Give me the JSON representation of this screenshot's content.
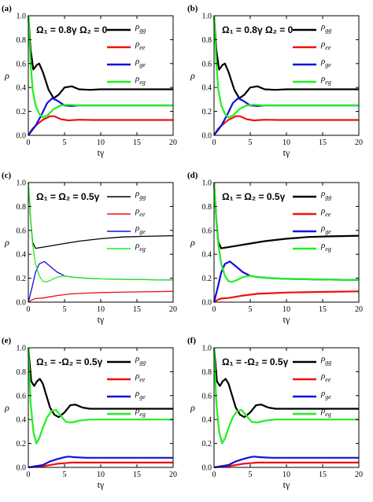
{
  "colors": {
    "gg": "#000000",
    "ee": "#ee1111",
    "ge": "#1111dd",
    "eg": "#22ee22"
  },
  "legend": {
    "labels": [
      {
        "key": "gg",
        "base": "ρ",
        "sub": "gg"
      },
      {
        "key": "ee",
        "base": "ρ",
        "sub": "ee"
      },
      {
        "key": "ge",
        "base": "ρ",
        "sub": "ge"
      },
      {
        "key": "eg",
        "base": "ρ",
        "sub": "eg"
      }
    ]
  },
  "axes": {
    "xlabel": "tγ",
    "ylabel": "ρ",
    "xticks": [
      "0",
      "5",
      "10",
      "15",
      "20"
    ],
    "yticks": [
      "0.0",
      "0.2",
      "0.4",
      "0.6",
      "0.8",
      "1.0"
    ]
  },
  "chart_data": [
    {
      "type": "line",
      "letter": "(a)",
      "annotation": "Ω₁ = 0.8γ  Ω₂ = 0",
      "xlim": [
        0,
        20
      ],
      "ylim": [
        0,
        1
      ],
      "linewidth": "thick",
      "series": [
        {
          "key": "gg",
          "name": "ρgg",
          "x": [
            0,
            0.3,
            0.7,
            1.2,
            1.5,
            2.0,
            2.8,
            3.5,
            4.2,
            5.0,
            6.0,
            7.0,
            8.5,
            10,
            15,
            20
          ],
          "y": [
            1.0,
            0.72,
            0.55,
            0.59,
            0.6,
            0.53,
            0.38,
            0.31,
            0.34,
            0.4,
            0.41,
            0.385,
            0.38,
            0.385,
            0.385,
            0.385
          ]
        },
        {
          "key": "ee",
          "name": "ρee",
          "x": [
            0,
            0.5,
            1,
            2,
            3,
            3.6,
            4.5,
            5.5,
            7,
            9,
            12,
            20
          ],
          "y": [
            0.0,
            0.05,
            0.08,
            0.13,
            0.16,
            0.16,
            0.135,
            0.125,
            0.13,
            0.128,
            0.128,
            0.128
          ]
        },
        {
          "key": "ge",
          "name": "ρge",
          "x": [
            0,
            0.5,
            1,
            1.8,
            2.6,
            3.3,
            4,
            5,
            6,
            7,
            9,
            12,
            20
          ],
          "y": [
            0.0,
            0.04,
            0.08,
            0.17,
            0.27,
            0.31,
            0.29,
            0.25,
            0.245,
            0.25,
            0.25,
            0.25,
            0.25
          ]
        },
        {
          "key": "eg",
          "name": "ρeg",
          "x": [
            0,
            0.3,
            0.6,
            1,
            1.5,
            2,
            2.7,
            3.5,
            4.5,
            5.5,
            7,
            9,
            12,
            20
          ],
          "y": [
            1.0,
            0.62,
            0.38,
            0.25,
            0.18,
            0.15,
            0.17,
            0.22,
            0.25,
            0.255,
            0.25,
            0.25,
            0.25,
            0.25
          ]
        }
      ]
    },
    {
      "type": "line",
      "letter": "(b)",
      "annotation": "Ω₁ = 0.8γ  Ω₂ = 0",
      "xlim": [
        0,
        20
      ],
      "ylim": [
        0,
        1
      ],
      "linewidth": "thick",
      "series": [
        {
          "key": "gg",
          "name": "ρgg",
          "x": [
            0,
            0.3,
            0.7,
            1.2,
            1.5,
            2.0,
            2.8,
            3.5,
            4.2,
            5.0,
            6.0,
            7.0,
            8.5,
            10,
            15,
            20
          ],
          "y": [
            1.0,
            0.72,
            0.55,
            0.59,
            0.6,
            0.53,
            0.38,
            0.31,
            0.34,
            0.4,
            0.41,
            0.385,
            0.38,
            0.385,
            0.385,
            0.385
          ]
        },
        {
          "key": "ee",
          "name": "ρee",
          "x": [
            0,
            0.5,
            1,
            2,
            3,
            3.6,
            4.5,
            5.5,
            7,
            9,
            12,
            20
          ],
          "y": [
            0.0,
            0.05,
            0.08,
            0.13,
            0.16,
            0.16,
            0.135,
            0.125,
            0.13,
            0.128,
            0.128,
            0.128
          ]
        },
        {
          "key": "ge",
          "name": "ρge",
          "x": [
            0,
            0.5,
            1,
            1.8,
            2.6,
            3.3,
            4,
            5,
            6,
            7,
            9,
            12,
            20
          ],
          "y": [
            0.0,
            0.04,
            0.08,
            0.17,
            0.27,
            0.31,
            0.29,
            0.25,
            0.245,
            0.25,
            0.25,
            0.25,
            0.25
          ]
        },
        {
          "key": "eg",
          "name": "ρeg",
          "x": [
            0,
            0.3,
            0.6,
            1,
            1.5,
            2,
            2.7,
            3.5,
            4.5,
            5.5,
            7,
            9,
            12,
            20
          ],
          "y": [
            1.0,
            0.62,
            0.38,
            0.25,
            0.18,
            0.15,
            0.17,
            0.22,
            0.25,
            0.255,
            0.25,
            0.25,
            0.25,
            0.25
          ]
        }
      ]
    },
    {
      "type": "line",
      "letter": "(c)",
      "annotation": "Ω₁ = Ω₂ = 0.5γ",
      "xlim": [
        0,
        20
      ],
      "ylim": [
        0,
        1
      ],
      "linewidth": "thin",
      "series": [
        {
          "key": "gg",
          "name": "ρgg",
          "x": [
            0,
            0.3,
            0.6,
            1,
            2,
            3,
            5,
            7,
            10,
            13,
            16,
            20
          ],
          "y": [
            1.0,
            0.7,
            0.5,
            0.45,
            0.46,
            0.47,
            0.49,
            0.51,
            0.53,
            0.545,
            0.55,
            0.555
          ]
        },
        {
          "key": "ee",
          "name": "ρee",
          "x": [
            0,
            0.5,
            1,
            2,
            3,
            4,
            6,
            8,
            10,
            14,
            20
          ],
          "y": [
            0.0,
            0.02,
            0.03,
            0.035,
            0.045,
            0.055,
            0.07,
            0.075,
            0.08,
            0.085,
            0.09
          ]
        },
        {
          "key": "ge",
          "name": "ρge",
          "x": [
            0,
            0.5,
            1,
            1.5,
            2.2,
            3,
            4,
            5,
            6,
            8,
            10,
            14,
            20
          ],
          "y": [
            0.0,
            0.12,
            0.25,
            0.32,
            0.34,
            0.3,
            0.25,
            0.22,
            0.21,
            0.2,
            0.195,
            0.19,
            0.185
          ]
        },
        {
          "key": "eg",
          "name": "ρeg",
          "x": [
            0,
            0.3,
            0.6,
            1,
            1.5,
            2,
            2.5,
            3,
            4,
            5,
            6,
            8,
            10,
            14,
            20
          ],
          "y": [
            1.0,
            0.7,
            0.48,
            0.32,
            0.22,
            0.175,
            0.17,
            0.18,
            0.21,
            0.22,
            0.21,
            0.2,
            0.195,
            0.19,
            0.185
          ]
        }
      ]
    },
    {
      "type": "line",
      "letter": "(d)",
      "annotation": "Ω₁ = Ω₂ = 0.5γ",
      "xlim": [
        0,
        20
      ],
      "ylim": [
        0,
        1
      ],
      "linewidth": "thick",
      "series": [
        {
          "key": "gg",
          "name": "ρgg",
          "x": [
            0,
            0.3,
            0.6,
            1,
            2,
            3,
            5,
            7,
            10,
            13,
            16,
            20
          ],
          "y": [
            1.0,
            0.7,
            0.5,
            0.45,
            0.46,
            0.47,
            0.49,
            0.51,
            0.53,
            0.545,
            0.55,
            0.555
          ]
        },
        {
          "key": "ee",
          "name": "ρee",
          "x": [
            0,
            0.5,
            1,
            2,
            3,
            4,
            6,
            8,
            10,
            14,
            20
          ],
          "y": [
            0.0,
            0.02,
            0.03,
            0.035,
            0.045,
            0.055,
            0.07,
            0.075,
            0.08,
            0.085,
            0.09
          ]
        },
        {
          "key": "ge",
          "name": "ρge",
          "x": [
            0,
            0.5,
            1,
            1.5,
            2.2,
            3,
            4,
            5,
            6,
            8,
            10,
            14,
            20
          ],
          "y": [
            0.0,
            0.12,
            0.25,
            0.32,
            0.34,
            0.3,
            0.25,
            0.22,
            0.21,
            0.2,
            0.195,
            0.19,
            0.185
          ]
        },
        {
          "key": "eg",
          "name": "ρeg",
          "x": [
            0,
            0.3,
            0.6,
            1,
            1.5,
            2,
            2.5,
            3,
            4,
            5,
            6,
            8,
            10,
            14,
            20
          ],
          "y": [
            1.0,
            0.7,
            0.48,
            0.32,
            0.22,
            0.175,
            0.17,
            0.18,
            0.21,
            0.22,
            0.21,
            0.2,
            0.195,
            0.19,
            0.185
          ]
        }
      ]
    },
    {
      "type": "line",
      "letter": "(e)",
      "annotation": "Ω₁ = -Ω₂ = 0.5γ",
      "xlim": [
        0,
        20
      ],
      "ylim": [
        0,
        1
      ],
      "linewidth": "thick",
      "series": [
        {
          "key": "gg",
          "name": "ρgg",
          "x": [
            0,
            0.4,
            0.8,
            1.2,
            1.6,
            2.0,
            2.5,
            3.0,
            3.6,
            4.2,
            5.0,
            5.8,
            6.5,
            7.5,
            8.5,
            10,
            13,
            20
          ],
          "y": [
            1.0,
            0.72,
            0.68,
            0.72,
            0.74,
            0.7,
            0.6,
            0.5,
            0.44,
            0.42,
            0.46,
            0.52,
            0.525,
            0.5,
            0.49,
            0.49,
            0.49,
            0.49
          ]
        },
        {
          "key": "ee",
          "name": "ρee",
          "x": [
            0,
            1,
            2,
            3,
            4,
            5,
            6,
            8,
            10,
            14,
            20
          ],
          "y": [
            0.0,
            0.005,
            0.01,
            0.02,
            0.03,
            0.035,
            0.04,
            0.04,
            0.04,
            0.04,
            0.04
          ]
        },
        {
          "key": "ge",
          "name": "ρge",
          "x": [
            0,
            1,
            2,
            3,
            4,
            5,
            5.5,
            6.5,
            8,
            10,
            14,
            20
          ],
          "y": [
            0.0,
            0.01,
            0.02,
            0.05,
            0.07,
            0.085,
            0.09,
            0.085,
            0.08,
            0.08,
            0.08,
            0.08
          ]
        },
        {
          "key": "eg",
          "name": "ρeg",
          "x": [
            0,
            0.3,
            0.7,
            1.1,
            1.5,
            2.0,
            2.6,
            3.2,
            3.8,
            4.5,
            5.2,
            6.0,
            7,
            8.5,
            10,
            13,
            20
          ],
          "y": [
            1.0,
            0.55,
            0.3,
            0.2,
            0.24,
            0.33,
            0.42,
            0.47,
            0.48,
            0.43,
            0.38,
            0.375,
            0.39,
            0.4,
            0.4,
            0.4,
            0.4
          ]
        }
      ]
    },
    {
      "type": "line",
      "letter": "(f)",
      "annotation": "Ω₁ = -Ω₂ = 0.5γ",
      "xlim": [
        0,
        20
      ],
      "ylim": [
        0,
        1
      ],
      "linewidth": "thick",
      "series": [
        {
          "key": "gg",
          "name": "ρgg",
          "x": [
            0,
            0.4,
            0.8,
            1.2,
            1.6,
            2.0,
            2.5,
            3.0,
            3.6,
            4.2,
            5.0,
            5.8,
            6.5,
            7.5,
            8.5,
            10,
            13,
            20
          ],
          "y": [
            1.0,
            0.72,
            0.68,
            0.72,
            0.74,
            0.7,
            0.6,
            0.5,
            0.44,
            0.42,
            0.46,
            0.52,
            0.525,
            0.5,
            0.49,
            0.49,
            0.49,
            0.49
          ]
        },
        {
          "key": "ee",
          "name": "ρee",
          "x": [
            0,
            1,
            2,
            3,
            4,
            5,
            6,
            8,
            10,
            14,
            20
          ],
          "y": [
            0.0,
            0.005,
            0.01,
            0.02,
            0.03,
            0.035,
            0.04,
            0.04,
            0.04,
            0.04,
            0.04
          ]
        },
        {
          "key": "ge",
          "name": "ρge",
          "x": [
            0,
            1,
            2,
            3,
            4,
            5,
            5.5,
            6.5,
            8,
            10,
            14,
            20
          ],
          "y": [
            0.0,
            0.01,
            0.02,
            0.05,
            0.07,
            0.085,
            0.09,
            0.085,
            0.08,
            0.08,
            0.08,
            0.08
          ]
        },
        {
          "key": "eg",
          "name": "ρeg",
          "x": [
            0,
            0.3,
            0.7,
            1.1,
            1.5,
            2.0,
            2.6,
            3.2,
            3.8,
            4.5,
            5.2,
            6.0,
            7,
            8.5,
            10,
            13,
            20
          ],
          "y": [
            1.0,
            0.55,
            0.3,
            0.2,
            0.24,
            0.33,
            0.42,
            0.47,
            0.48,
            0.43,
            0.38,
            0.375,
            0.39,
            0.4,
            0.4,
            0.4,
            0.4
          ]
        }
      ]
    }
  ]
}
